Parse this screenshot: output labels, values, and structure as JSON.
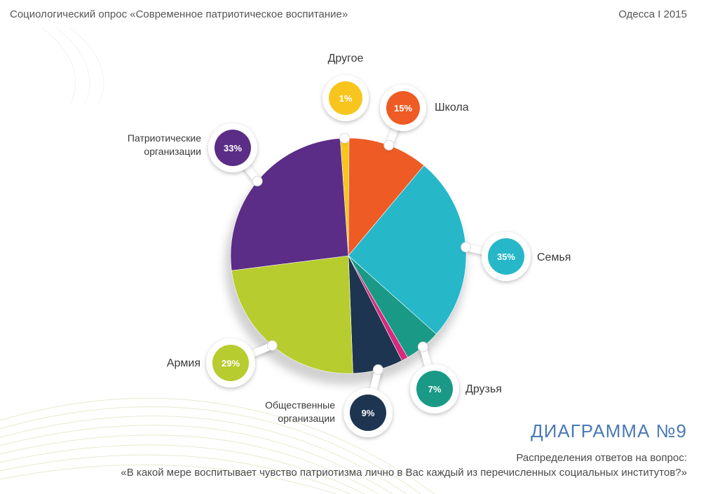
{
  "header": {
    "survey_title": "Социологический опрос «Современное патриотическое воспитание»",
    "place_year": "Одесса I 2015"
  },
  "footer": {
    "diagram_title": "ДИАГРАММА №9",
    "question_intro": "Распределения ответов на вопрос:",
    "question": "«В какой мере воспитывает чувство патриотизма лично в Вас каждый из перечисленных социальных институтов?»"
  },
  "chart_data": {
    "type": "pie",
    "title": "",
    "slices": [
      {
        "label": "Другое",
        "pct_label": "1%",
        "value": 1,
        "color": "#f7c51e",
        "arc": 1.2
      },
      {
        "label": "Школа",
        "pct_label": "15%",
        "value": 15,
        "color": "#ee5b24",
        "arc": 11
      },
      {
        "label": "Семья",
        "pct_label": "35%",
        "value": 35,
        "color": "#26b7c9",
        "arc": 25.5
      },
      {
        "label": "Друзья",
        "pct_label": "7%",
        "value": 7,
        "color": "#1a9a86",
        "arc": 5
      },
      {
        "label": "",
        "pct_label": "",
        "value": null,
        "color": "#d62a7e",
        "arc": 0.9
      },
      {
        "label": "Общественные организации",
        "pct_label": "9%",
        "value": 9,
        "color": "#1d3550",
        "arc": 6.9
      },
      {
        "label": "Армия",
        "pct_label": "29%",
        "value": 29,
        "color": "#b7cc2e",
        "arc": 23.6
      },
      {
        "label": "Патриотические организации",
        "pct_label": "33%",
        "value": 33,
        "color": "#5b2d86",
        "arc": 25.9
      }
    ]
  }
}
